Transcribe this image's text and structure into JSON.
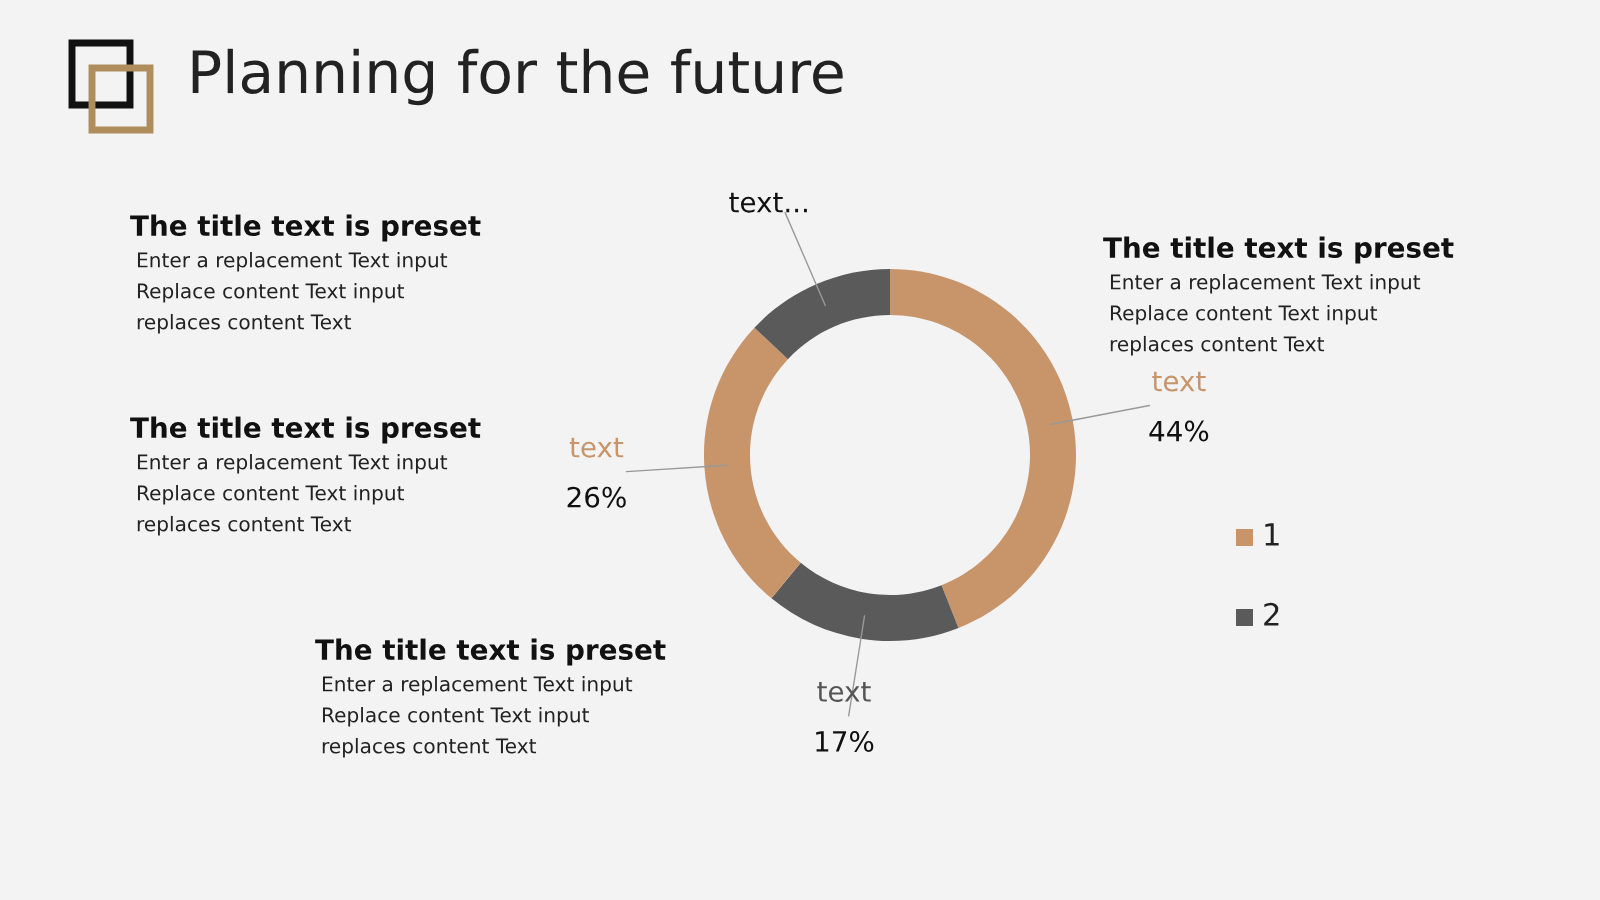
{
  "chart_data": {
    "type": "donut",
    "title": "Planning for the future",
    "categories": [
      "text",
      "text",
      "text",
      "text..."
    ],
    "values": [
      44,
      17,
      26,
      13
    ],
    "colors": [
      "#c8956a",
      "#5a5a5a",
      "#c8956a",
      "#5a5a5a"
    ],
    "value_labels": [
      "44%",
      "17%",
      "26%",
      null
    ],
    "annotations": [
      "The title text is preset",
      "Enter a replacement Text input\nReplace content Text input\nreplaces content Text",
      "The title text is preset",
      "Enter a replacement Text input\nReplace content Text input\nreplaces content Text",
      "The title text is preset",
      "Enter a replacement Text input\nReplace content Text input\nreplaces content Text",
      "The title text is preset",
      "Enter a replacement Text input\nReplace content Text input\nreplaces content Text",
      "1",
      "2"
    ]
  }
}
